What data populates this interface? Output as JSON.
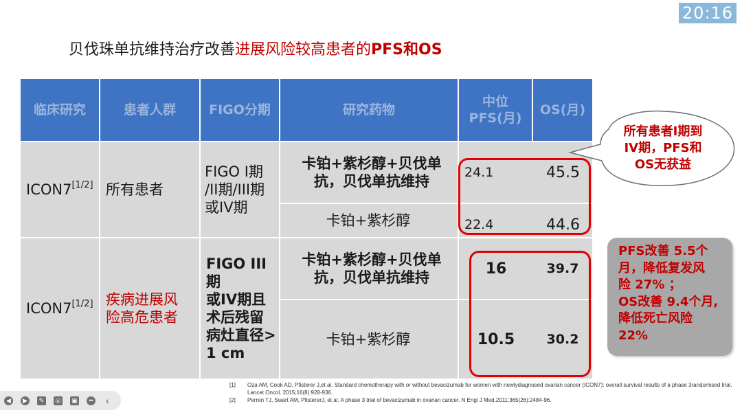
{
  "clock": "20:16",
  "title": {
    "part1": "贝伐珠单抗维持治疗改善",
    "part2": "进展风险较高患者的",
    "part3": "PFS和OS"
  },
  "table": {
    "headers": {
      "study": "临床研究",
      "population": "患者人群",
      "figo": "FIGO分期",
      "drug": "研究药物",
      "pfs_line1": "中位",
      "pfs_line2": "PFS(月)",
      "os": "OS(月)"
    },
    "groups": [
      {
        "study": "ICON7",
        "study_ref": "[1/2]",
        "population": "所有患者",
        "figo": [
          "FIGO I期",
          "/II期/III期",
          "或IV期"
        ],
        "rows": [
          {
            "drug": [
              "卡铂+紫杉醇+贝伐单",
              "抗，贝伐单抗维持"
            ],
            "pfs": "24.1",
            "os": "45.5"
          },
          {
            "drug": [
              "卡铂+紫杉醇"
            ],
            "pfs": "22.4",
            "os": "44.6"
          }
        ]
      },
      {
        "study": "ICON7",
        "study_ref": "[1/2]",
        "population": [
          "疾病进展风",
          "险高危患者"
        ],
        "figo": [
          "FIGO III期",
          "或IV期且",
          "术后残留",
          "病灶直径>",
          "1 cm"
        ],
        "rows": [
          {
            "drug": [
              "卡铂+紫杉醇+贝伐单",
              "抗，贝伐单抗维持"
            ],
            "pfs": "16",
            "os": "39.7"
          },
          {
            "drug": [
              "卡铂+紫杉醇"
            ],
            "pfs": "10.5",
            "os": "30.2"
          }
        ]
      }
    ]
  },
  "callout": [
    "所有患者I期到",
    "IV期，PFS和",
    "OS无获益"
  ],
  "summary": [
    "PFS改善 5.5个",
    "月，降低复发风",
    "险 27% ；",
    "OS改善 9.4个月,",
    "降低死亡风险",
    "22%"
  ],
  "references": [
    {
      "num": "[1]",
      "text": "Oza AM, Cook AD, Pfisterer J,et al. Standard chemotherapy with or without bevacizumab for women with newlydiagnosed ovarian cancer (ICON7): overall survival results of a phase 3randomised trial. Lancet Oncol. 2015;16(8):928-936."
    },
    {
      "num": "[2]",
      "text": "Perren TJ, Swart AM, PfistererJ, et al. A phase 3 trial of bevacizumab in ovarian cancer. N Engl J Med.2011;365(26):2484-96."
    }
  ],
  "toolbar_icons": [
    "prev-icon",
    "play-icon",
    "pen-icon",
    "pointer-icon",
    "screen-icon",
    "more-icon",
    "collapse-icon"
  ]
}
